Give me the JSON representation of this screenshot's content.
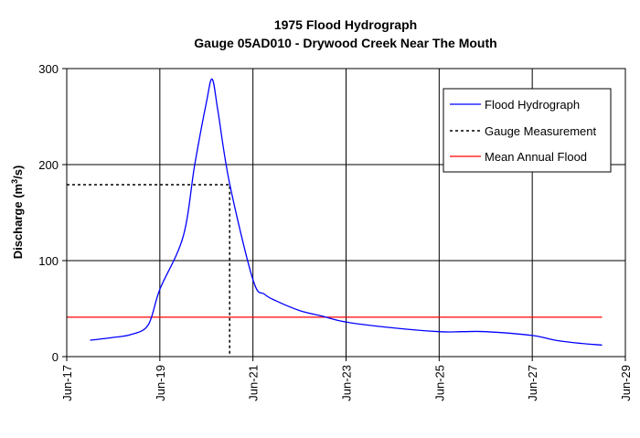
{
  "chart_data": {
    "type": "line",
    "title": "1975 Flood Hydrograph",
    "subtitle": "Gauge 05AD010 - Drywood Creek Near The Mouth",
    "ylabel": "Discharge (m³/s)",
    "ylabel_parts": {
      "main": "Discharge (m",
      "sup": "3",
      "tail": "/s)"
    },
    "xlabel": "",
    "xlim": [
      "1975-06-17",
      "1975-06-29"
    ],
    "ylim": [
      0,
      300
    ],
    "x_ticks": [
      "Jun-17",
      "Jun-19",
      "Jun-21",
      "Jun-23",
      "Jun-25",
      "Jun-27",
      "Jun-29"
    ],
    "y_ticks": [
      "0",
      "100",
      "200",
      "300"
    ],
    "grid": true,
    "legend_position": "top-right",
    "series": [
      {
        "name": "Flood Hydrograph",
        "color": "#0000ff",
        "style": "solid",
        "x": [
          "1975-06-17T12:00",
          "1975-06-18T00:00",
          "1975-06-18T09:00",
          "1975-06-18T18:00",
          "1975-06-19T00:00",
          "1975-06-19T12:00",
          "1975-06-19T18:00",
          "1975-06-20T00:00",
          "1975-06-20T03:00",
          "1975-06-20T06:00",
          "1975-06-20T12:00",
          "1975-06-21T00:00",
          "1975-06-21T06:00",
          "1975-06-21T12:00",
          "1975-06-22T00:00",
          "1975-06-22T12:00",
          "1975-06-23T00:00",
          "1975-06-24T00:00",
          "1975-06-25T00:00",
          "1975-06-25T12:00",
          "1975-06-26T00:00",
          "1975-06-27T00:00",
          "1975-06-27T12:00",
          "1975-06-28T00:00",
          "1975-06-28T12:00"
        ],
        "y": [
          17,
          20,
          23,
          33,
          70,
          125,
          200,
          265,
          289,
          255,
          180,
          80,
          65,
          58,
          48,
          42,
          36,
          30,
          26,
          26,
          26,
          22,
          17,
          14,
          12
        ]
      },
      {
        "name": "Gauge Measurement",
        "color": "#000000",
        "style": "dotted",
        "x": [
          "1975-06-17T00:00",
          "1975-06-20T12:00",
          "1975-06-20T12:00"
        ],
        "y": [
          179,
          179,
          0
        ]
      },
      {
        "name": "Mean Annual Flood",
        "color": "#ff0000",
        "style": "solid",
        "x": [
          "1975-06-17T00:00",
          "1975-06-28T12:00"
        ],
        "y": [
          41,
          41
        ]
      }
    ]
  }
}
